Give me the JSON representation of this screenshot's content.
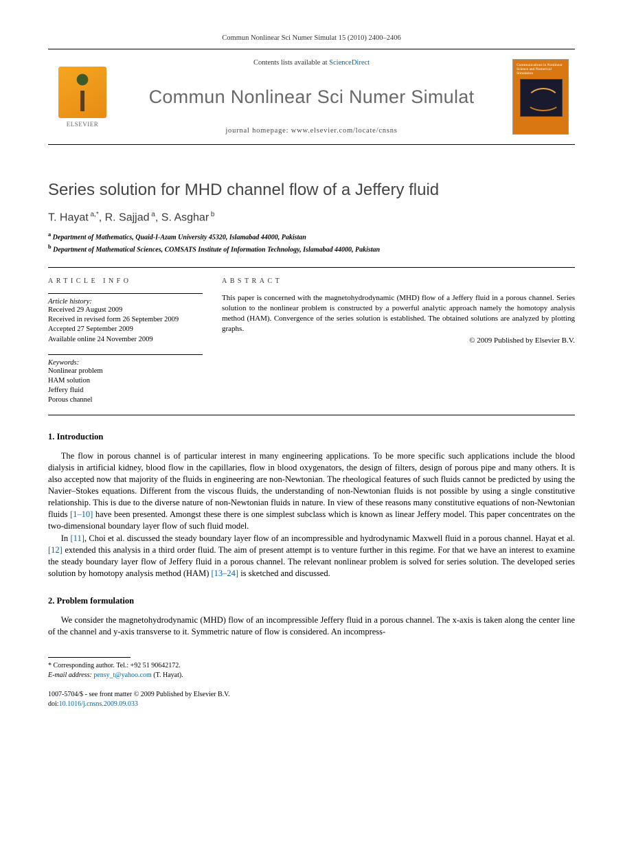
{
  "header_citation": "Commun Nonlinear Sci Numer Simulat 15 (2010) 2400–2406",
  "masthead": {
    "contents_prefix": "Contents lists available at ",
    "contents_link": "ScienceDirect",
    "journal_name": "Commun Nonlinear Sci Numer Simulat",
    "homepage_label": "journal homepage: www.elsevier.com/locate/cnsns",
    "publisher": "ELSEVIER",
    "cover_text": "Communications in Nonlinear Science and Numerical Simulation"
  },
  "article": {
    "title": "Series solution for MHD channel flow of a Jeffery fluid",
    "authors_html": "T. Hayat <sup>a,*</sup>, R. Sajjad <sup>a</sup>, S. Asghar <sup>b</sup>",
    "affiliations": [
      "Department of Mathematics, Quaid-I-Azam University 45320, Islamabad 44000, Pakistan",
      "Department of Mathematical Sciences, COMSATS Institute of Information Technology, Islamabad 44000, Pakistan"
    ]
  },
  "info": {
    "heading": "ARTICLE INFO",
    "history_label": "Article history:",
    "history": [
      "Received 29 August 2009",
      "Received in revised form 26 September 2009",
      "Accepted 27 September 2009",
      "Available online 24 November 2009"
    ],
    "keywords_label": "Keywords:",
    "keywords": [
      "Nonlinear problem",
      "HAM solution",
      "Jeffery fluid",
      "Porous channel"
    ]
  },
  "abstract": {
    "heading": "ABSTRACT",
    "text": "This paper is concerned with the magnetohydrodynamic (MHD) flow of a Jeffery fluid in a porous channel. Series solution to the nonlinear problem is constructed by a powerful analytic approach namely the homotopy analysis method (HAM). Convergence of the series solution is established. The obtained solutions are analyzed by plotting graphs.",
    "copyright": "© 2009 Published by Elsevier B.V."
  },
  "sections": {
    "s1": {
      "title": "1. Introduction",
      "p1_a": "The flow in porous channel is of particular interest in many engineering applications. To be more specific such applications include the blood dialysis in artificial kidney, blood flow in the capillaries, flow in blood oxygenators, the design of filters, design of porous pipe and many others. It is also accepted now that majority of the fluids in engineering are non-Newtonian. The rheological features of such fluids cannot be predicted by using the Navier–Stokes equations. Different from the viscous fluids, the understanding of non-Newtonian fluids is not possible by using a single constitutive relationship. This is due to the diverse nature of non-Newtonian fluids in nature. In view of these reasons many constitutive equations of non-Newtonian fluids ",
      "p1_ref1": "[1–10]",
      "p1_b": " have been presented. Amongst these there is one simplest subclass which is known as linear Jeffery model. This paper concentrates on the two-dimensional boundary layer flow of such fluid model.",
      "p2_a": "In ",
      "p2_ref1": "[11]",
      "p2_b": ", Choi et al. discussed the steady boundary layer flow of an incompressible and hydrodynamic Maxwell fluid in a porous channel. Hayat et al. ",
      "p2_ref2": "[12]",
      "p2_c": " extended this analysis in a third order fluid. The aim of present attempt is to venture further in this regime. For that we have an interest to examine the steady boundary layer flow of Jeffery fluid in a porous channel. The relevant nonlinear problem is solved for series solution. The developed series solution by homotopy analysis method (HAM) ",
      "p2_ref3": "[13–24]",
      "p2_d": " is sketched and discussed."
    },
    "s2": {
      "title": "2. Problem formulation",
      "p1": "We consider the magnetohydrodynamic (MHD) flow of an incompressible Jeffery fluid in a porous channel. The x-axis is taken along the center line of the channel and y-axis transverse to it. Symmetric nature of flow is considered. An incompress-"
    }
  },
  "footnote": {
    "corr": "* Corresponding author. Tel.: +92 51 90642172.",
    "email_label": "E-mail address: ",
    "email": "pensy_t@yahoo.com",
    "email_suffix": " (T. Hayat)."
  },
  "footer": {
    "line1": "1007-5704/$ - see front matter © 2009 Published by Elsevier B.V.",
    "doi_label": "doi:",
    "doi": "10.1016/j.cnsns.2009.09.033"
  }
}
